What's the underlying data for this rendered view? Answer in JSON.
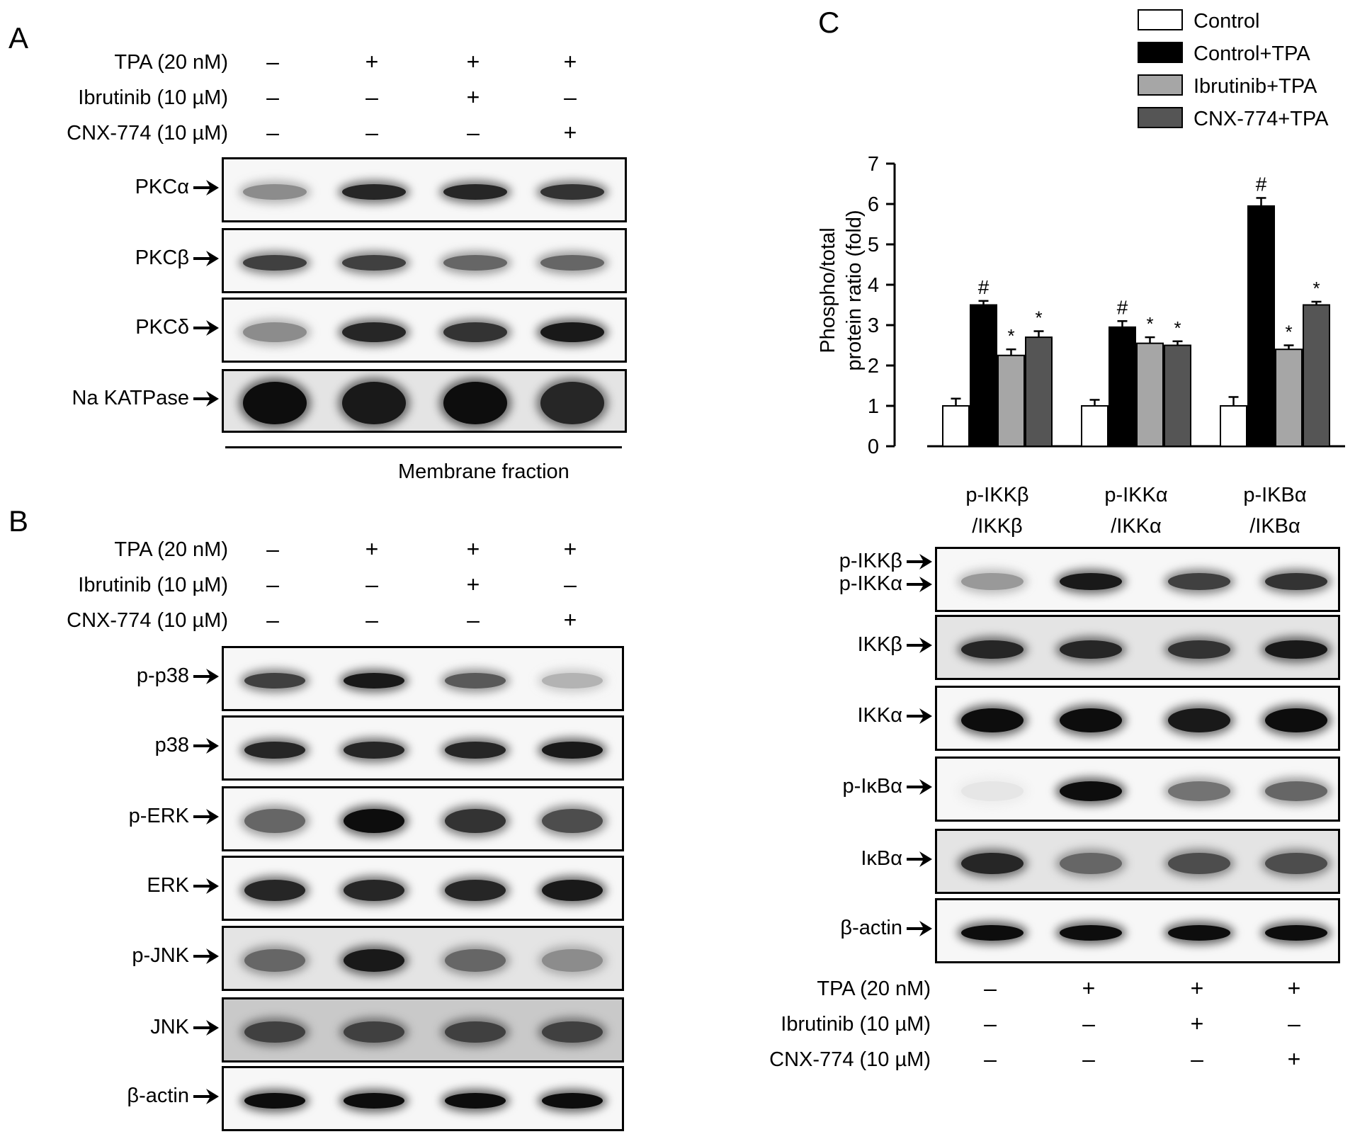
{
  "panels": {
    "A": {
      "letter": "A",
      "conditions": [
        {
          "label": "TPA (20 nM)",
          "signs": [
            "–",
            "+",
            "+",
            "+"
          ]
        },
        {
          "label": "Ibrutinib (10 µM)",
          "signs": [
            "–",
            "–",
            "+",
            "–"
          ]
        },
        {
          "label": "CNX-774 (10 µM)",
          "signs": [
            "–",
            "–",
            "–",
            "+"
          ]
        }
      ],
      "blots": [
        {
          "label": "PKCα",
          "intensity": [
            0.45,
            0.85,
            0.85,
            0.8
          ]
        },
        {
          "label": "PKCβ",
          "intensity": [
            0.75,
            0.75,
            0.6,
            0.6
          ]
        },
        {
          "label": "PKCδ",
          "intensity": [
            0.45,
            0.85,
            0.8,
            0.9
          ]
        },
        {
          "label": "Na KATPase",
          "intensity": [
            0.95,
            0.9,
            0.95,
            0.85
          ]
        }
      ],
      "fraction_label": "Membrane fraction"
    },
    "B": {
      "letter": "B",
      "conditions": [
        {
          "label": "TPA (20 nM)",
          "signs": [
            "–",
            "+",
            "+",
            "+"
          ]
        },
        {
          "label": "Ibrutinib (10 µM)",
          "signs": [
            "–",
            "–",
            "+",
            "–"
          ]
        },
        {
          "label": "CNX-774 (10 µM)",
          "signs": [
            "–",
            "–",
            "–",
            "+"
          ]
        }
      ],
      "blots": [
        {
          "label": "p-p38",
          "intensity": [
            0.75,
            0.9,
            0.65,
            0.3
          ]
        },
        {
          "label": "p38",
          "intensity": [
            0.85,
            0.85,
            0.85,
            0.9
          ]
        },
        {
          "label": "p-ERK",
          "intensity": [
            0.6,
            0.95,
            0.8,
            0.7
          ]
        },
        {
          "label": "ERK",
          "intensity": [
            0.85,
            0.85,
            0.85,
            0.9
          ]
        },
        {
          "label": "p-JNK",
          "intensity": [
            0.6,
            0.9,
            0.6,
            0.45
          ]
        },
        {
          "label": "JNK",
          "intensity": [
            0.75,
            0.75,
            0.75,
            0.75
          ]
        },
        {
          "label": "β-actin",
          "intensity": [
            0.95,
            0.95,
            0.95,
            0.95
          ]
        }
      ]
    },
    "C": {
      "letter": "C",
      "legend": [
        "Control",
        "Control+TPA",
        "Ibrutinib+TPA",
        "CNX-774+TPA"
      ],
      "ylabel_line1": "Phospho/total",
      "ylabel_line2": "protein ratio (fold)",
      "group_labels": [
        {
          "line1": "p-IKKβ",
          "line2": "/IKKβ"
        },
        {
          "line1": "p-IKKα",
          "line2": "/IKKα"
        },
        {
          "line1": "p-IKBα",
          "line2": "/IKBα"
        }
      ],
      "blots": [
        {
          "label": "p-IKKβ",
          "label2": "p-IKKα",
          "intensity": [
            0.4,
            0.9,
            0.75,
            0.8
          ]
        },
        {
          "label": "IKKβ",
          "intensity": [
            0.85,
            0.85,
            0.8,
            0.9
          ]
        },
        {
          "label": "IKKα",
          "intensity": [
            0.95,
            0.95,
            0.9,
            0.95
          ]
        },
        {
          "label": "p-IκBα",
          "intensity": [
            0.1,
            0.95,
            0.55,
            0.6
          ]
        },
        {
          "label": "IκBα",
          "intensity": [
            0.85,
            0.6,
            0.7,
            0.7
          ]
        },
        {
          "label": "β-actin",
          "intensity": [
            0.95,
            0.95,
            0.95,
            0.95
          ]
        }
      ],
      "conditions": [
        {
          "label": "TPA (20 nM)",
          "signs": [
            "–",
            "+",
            "+",
            "+"
          ]
        },
        {
          "label": "Ibrutinib (10 µM)",
          "signs": [
            "–",
            "–",
            "+",
            "–"
          ]
        },
        {
          "label": "CNX-774 (10 µM)",
          "signs": [
            "–",
            "–",
            "–",
            "+"
          ]
        }
      ]
    }
  },
  "chart_data": {
    "type": "bar",
    "title": "",
    "xlabel": "",
    "ylabel": "Phospho/total protein ratio (fold)",
    "ylim": [
      0,
      7
    ],
    "yticks": [
      0,
      1,
      2,
      3,
      4,
      5,
      6,
      7
    ],
    "categories": [
      "p-IKKβ /IKKβ",
      "p-IKKα /IKKα",
      "p-IKBα /IKBα"
    ],
    "series": [
      {
        "name": "Control",
        "color": "#ffffff",
        "values": [
          1.0,
          1.0,
          1.0
        ],
        "errors": [
          0.18,
          0.15,
          0.22
        ],
        "marks": [
          "",
          "",
          ""
        ]
      },
      {
        "name": "Control+TPA",
        "color": "#000000",
        "values": [
          3.5,
          2.95,
          5.95
        ],
        "errors": [
          0.1,
          0.15,
          0.2
        ],
        "marks": [
          "#",
          "#",
          "#"
        ]
      },
      {
        "name": "Ibrutinib+TPA",
        "color": "#a6a6a6",
        "values": [
          2.25,
          2.55,
          2.4
        ],
        "errors": [
          0.15,
          0.15,
          0.1
        ],
        "marks": [
          "*",
          "*",
          "*"
        ]
      },
      {
        "name": "CNX-774+TPA",
        "color": "#555555",
        "values": [
          2.7,
          2.5,
          3.5
        ],
        "errors": [
          0.15,
          0.1,
          0.08
        ],
        "marks": [
          "*",
          "*",
          "*"
        ]
      }
    ],
    "legend_position": "top-right",
    "grid": false
  }
}
